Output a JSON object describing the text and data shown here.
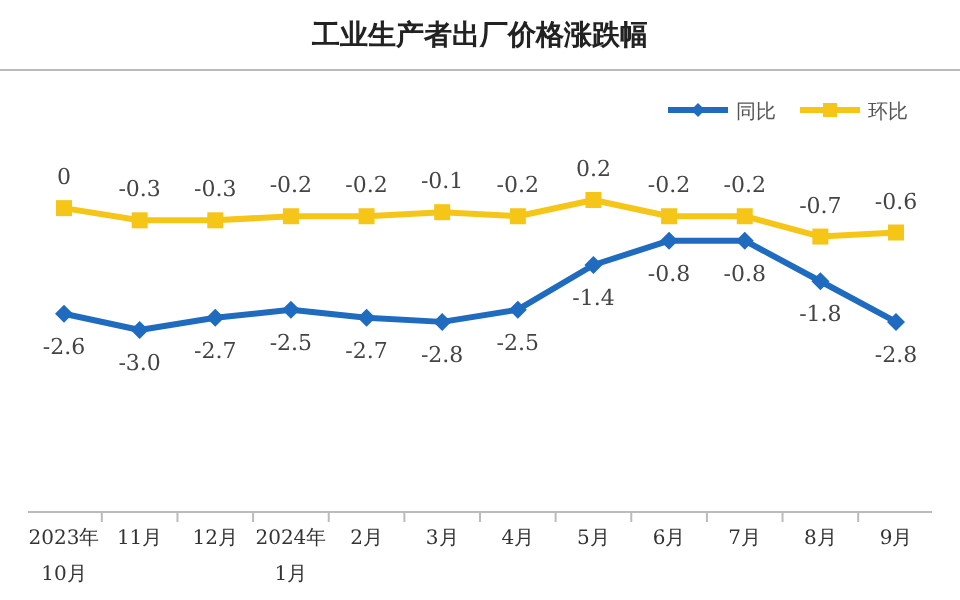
{
  "chart_data": {
    "type": "line",
    "title": "工业生产者出厂价格涨跌幅",
    "categories": [
      "2023年\n10月",
      "11月",
      "12月",
      "2024年\n1月",
      "2月",
      "3月",
      "4月",
      "5月",
      "6月",
      "7月",
      "8月",
      "9月"
    ],
    "series": [
      {
        "name": "同比",
        "color": "#1f6bbf",
        "marker": "diamond",
        "values": [
          -2.6,
          -3.0,
          -2.7,
          -2.5,
          -2.7,
          -2.8,
          -2.5,
          -1.4,
          -0.8,
          -0.8,
          -1.8,
          -2.8
        ],
        "value_labels": [
          "-2.6",
          "-3.0",
          "-2.7",
          "-2.5",
          "-2.7",
          "-2.8",
          "-2.5",
          "-1.4",
          "-0.8",
          "-0.8",
          "-1.8",
          "-2.8"
        ]
      },
      {
        "name": "环比",
        "color": "#f5c518",
        "marker": "square",
        "values": [
          0,
          -0.3,
          -0.3,
          -0.2,
          -0.2,
          -0.1,
          -0.2,
          0.2,
          -0.2,
          -0.2,
          -0.7,
          -0.6
        ],
        "value_labels": [
          "0",
          "-0.3",
          "-0.3",
          "-0.2",
          "-0.2",
          "-0.1",
          "-0.2",
          "0.2",
          "-0.2",
          "-0.2",
          "-0.7",
          "-0.6"
        ]
      }
    ],
    "legend": "top right"
  }
}
